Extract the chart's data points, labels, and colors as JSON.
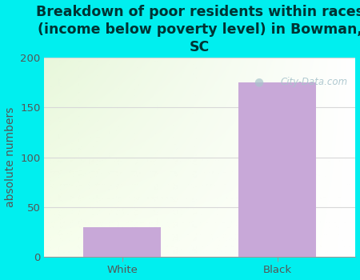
{
  "categories": [
    "White",
    "Black"
  ],
  "values": [
    30,
    175
  ],
  "bar_color": "#c8a8d8",
  "background_color": "#00efef",
  "title": "Breakdown of poor residents within races\n(income below poverty level) in Bowman,\nSC",
  "ylabel": "absolute numbers",
  "ylim": [
    0,
    200
  ],
  "yticks": [
    0,
    50,
    100,
    150,
    200
  ],
  "title_fontsize": 12.5,
  "title_fontweight": "bold",
  "label_fontsize": 10,
  "tick_fontsize": 9.5,
  "grid_color": "#d8d8d8",
  "watermark_text": "City-Data.com",
  "watermark_color": "#a8c4cc",
  "ylabel_color": "#555555",
  "tick_color": "#555555",
  "title_color": "#003333"
}
